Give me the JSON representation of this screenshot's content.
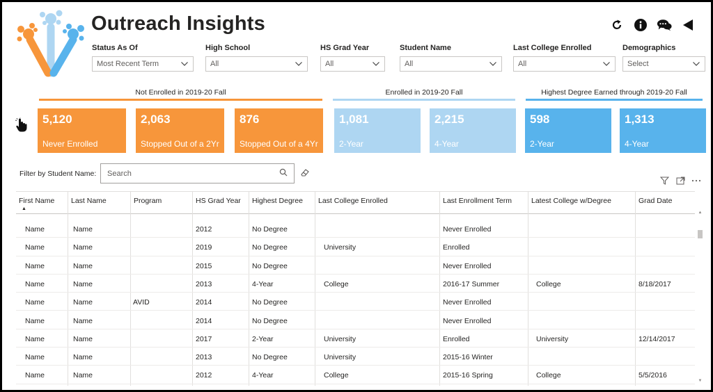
{
  "app": {
    "title": "Outreach Insights"
  },
  "toolbar": {
    "refresh_icon": "refresh-icon",
    "info_icon": "info-icon",
    "chat_icon": "chat-icon",
    "back_icon": "back-triangle-icon"
  },
  "filters": [
    {
      "label": "Status As Of",
      "value": "Most Recent Term"
    },
    {
      "label": "High School",
      "value": "All"
    },
    {
      "label": "HS Grad Year",
      "value": "All"
    },
    {
      "label": "Student Name",
      "value": "All"
    },
    {
      "label": "Last College Enrolled",
      "value": "All"
    },
    {
      "label": "Demographics",
      "value": "Select"
    }
  ],
  "sections": {
    "not_enrolled": "Not Enrolled in 2019-20 Fall",
    "enrolled": "Enrolled in 2019-20 Fall",
    "degree": "Highest Degree Earned through 2019-20 Fall"
  },
  "cards": [
    {
      "value": "5,120",
      "label": "Never Enrolled"
    },
    {
      "value": "2,063",
      "label": "Stopped Out of a 2Yr"
    },
    {
      "value": "876",
      "label": "Stopped Out of a 4Yr"
    },
    {
      "value": "1,081",
      "label": "2-Year"
    },
    {
      "value": "2,215",
      "label": "4-Year"
    },
    {
      "value": "598",
      "label": "2-Year"
    },
    {
      "value": "1,313",
      "label": "4-Year"
    }
  ],
  "colors": {
    "orange": "#f7963b",
    "light_blue": "#aed6f2",
    "blue": "#58b3ec"
  },
  "search": {
    "label": "Filter by Student Name:",
    "placeholder": "Search"
  },
  "table": {
    "columns": [
      "First Name",
      "Last Name",
      "Program",
      "HS Grad Year",
      "Highest Degree",
      "Last College Enrolled",
      "Last Enrollment Term",
      "Latest College w/Degree",
      "Grad Date"
    ],
    "sort_indicator": "▲",
    "rows": [
      [
        "Name",
        "Name",
        "",
        "2012",
        "No Degree",
        "",
        "Never Enrolled",
        "",
        ""
      ],
      [
        "Name",
        "Name",
        "",
        "2019",
        "No Degree",
        "University",
        "Enrolled",
        "",
        ""
      ],
      [
        "Name",
        "Name",
        "",
        "2015",
        "No Degree",
        "",
        "Never Enrolled",
        "",
        ""
      ],
      [
        "Name",
        "Name",
        "",
        "2013",
        "4-Year",
        "College",
        "2016-17 Summer",
        "College",
        "8/18/2017"
      ],
      [
        "Name",
        "Name",
        "AVID",
        "2014",
        "No Degree",
        "",
        "Never Enrolled",
        "",
        ""
      ],
      [
        "Name",
        "Name",
        "",
        "2014",
        "No Degree",
        "",
        "Never Enrolled",
        "",
        ""
      ],
      [
        "Name",
        "Name",
        "",
        "2017",
        "2-Year",
        "University",
        "Enrolled",
        "University",
        "12/14/2017"
      ],
      [
        "Name",
        "Name",
        "",
        "2013",
        "No Degree",
        "University",
        "2015-16 Winter",
        "",
        ""
      ],
      [
        "Name",
        "Name",
        "",
        "2012",
        "4-Year",
        "College",
        "2015-16 Spring",
        "College",
        "5/5/2016"
      ]
    ]
  }
}
